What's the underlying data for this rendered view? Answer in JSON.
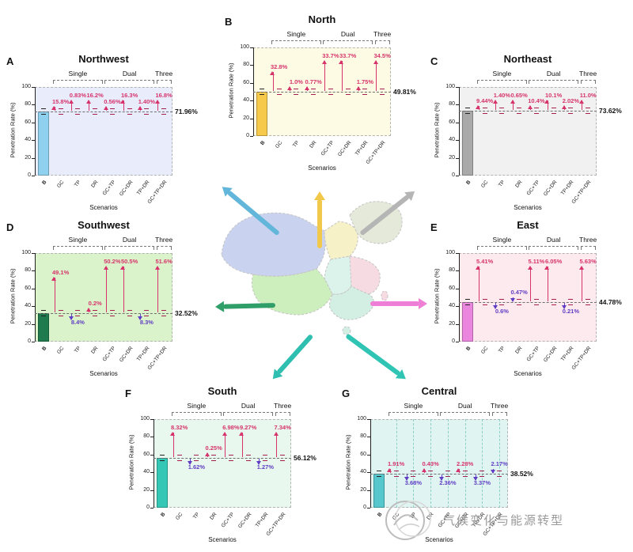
{
  "figure": {
    "scenarios": [
      "B",
      "GC",
      "TP",
      "DR",
      "GC+TP",
      "GC+DR",
      "TP+DR",
      "GC+TP+DR"
    ],
    "groups": [
      {
        "label": "Single",
        "from": 1,
        "to": 3
      },
      {
        "label": "Dual",
        "from": 4,
        "to": 6
      },
      {
        "label": "Three",
        "from": 7,
        "to": 7
      }
    ],
    "ylabel": "Penetration Rate (%)",
    "xlabel": "Scenarios",
    "yticks": [
      0,
      20,
      40,
      60,
      80,
      100
    ],
    "ylim": [
      0,
      100
    ],
    "colors": {
      "increase": "#d6336c",
      "decrease": "#5f3dc4",
      "baseline_line": "#6e6e6e",
      "marker": "#a61e4d"
    },
    "watermark": {
      "text": "气候变化与能源转型"
    }
  },
  "chart_data": [
    {
      "id": "A",
      "panel_letter": "A",
      "title": "Northwest",
      "type": "bar",
      "ylim": [
        0,
        100
      ],
      "baseline": 71.96,
      "baseline_label": "71.96%",
      "bar_color": "#8fd0ee",
      "bg_color": "#e9edfb",
      "map_color": "#c9d2ef",
      "arrow_color": "#62b6d9",
      "annotations": [
        {
          "scenario": "GC",
          "label": "15.8%",
          "direction": "increase",
          "level": "mid"
        },
        {
          "scenario": "TP",
          "label": "0.83%",
          "direction": "increase",
          "level": "high"
        },
        {
          "scenario": "DR",
          "label": "16.2%",
          "direction": "increase",
          "level": "high"
        },
        {
          "scenario": "GC+TP",
          "label": "0.56%",
          "direction": "increase",
          "level": "mid"
        },
        {
          "scenario": "GC+DR",
          "label": "16.3%",
          "direction": "increase",
          "level": "high"
        },
        {
          "scenario": "TP+DR",
          "label": "1.40%",
          "direction": "increase",
          "level": "mid"
        },
        {
          "scenario": "GC+TP+DR",
          "label": "16.8%",
          "direction": "increase",
          "level": "high"
        }
      ]
    },
    {
      "id": "B",
      "panel_letter": "B",
      "title": "North",
      "type": "bar",
      "ylim": [
        0,
        100
      ],
      "baseline": 49.81,
      "baseline_label": "49.81%",
      "bar_color": "#f6c94a",
      "bg_color": "#fdfbe3",
      "map_color": "#f6f1c6",
      "arrow_color": "#f2c84b",
      "annotations": [
        {
          "scenario": "GC",
          "label": "32.8%",
          "direction": "increase",
          "level": "high2"
        },
        {
          "scenario": "TP",
          "label": "1.0%",
          "direction": "increase",
          "level": "mid"
        },
        {
          "scenario": "DR",
          "label": "0.77%",
          "direction": "increase",
          "level": "mid"
        },
        {
          "scenario": "GC+TP",
          "label": "33.7%",
          "direction": "increase",
          "level": "high"
        },
        {
          "scenario": "GC+DR",
          "label": "33.7%",
          "direction": "increase",
          "level": "high"
        },
        {
          "scenario": "TP+DR",
          "label": "1.75%",
          "direction": "increase",
          "level": "mid"
        },
        {
          "scenario": "GC+TP+DR",
          "label": "34.5%",
          "direction": "increase",
          "level": "high"
        }
      ]
    },
    {
      "id": "C",
      "panel_letter": "C",
      "title": "Northeast",
      "type": "bar",
      "ylim": [
        0,
        100
      ],
      "baseline": 73.62,
      "baseline_label": "73.62%",
      "bar_color": "#a9a9a9",
      "bg_color": "#f1f1f1",
      "map_color": "#e4e9d9",
      "arrow_color": "#b5b5b5",
      "annotations": [
        {
          "scenario": "GC",
          "label": "9.44%",
          "direction": "increase",
          "level": "mid"
        },
        {
          "scenario": "TP",
          "label": "1.40%",
          "direction": "increase",
          "level": "high"
        },
        {
          "scenario": "DR",
          "label": "0.65%",
          "direction": "increase",
          "level": "high"
        },
        {
          "scenario": "GC+TP",
          "label": "10.4%",
          "direction": "increase",
          "level": "mid"
        },
        {
          "scenario": "GC+DR",
          "label": "10.1%",
          "direction": "increase",
          "level": "high"
        },
        {
          "scenario": "TP+DR",
          "label": "2.02%",
          "direction": "increase",
          "level": "mid"
        },
        {
          "scenario": "GC+TP+DR",
          "label": "11.0%",
          "direction": "increase",
          "level": "high"
        }
      ]
    },
    {
      "id": "D",
      "panel_letter": "D",
      "title": "Southwest",
      "type": "bar",
      "ylim": [
        0,
        100
      ],
      "baseline": 32.52,
      "baseline_label": "32.52%",
      "bar_color": "#1f7a4d",
      "bg_color": "#dbf3ca",
      "map_color": "#cdeebd",
      "arrow_color": "#2f9e68",
      "annotations": [
        {
          "scenario": "GC",
          "label": "49.1%",
          "direction": "increase",
          "level": "high2"
        },
        {
          "scenario": "TP",
          "label": "8.4%",
          "direction": "decrease",
          "level": "low"
        },
        {
          "scenario": "DR",
          "label": "0.2%",
          "direction": "increase",
          "level": "mid"
        },
        {
          "scenario": "GC+TP",
          "label": "50.2%",
          "direction": "increase",
          "level": "high"
        },
        {
          "scenario": "GC+DR",
          "label": "50.5%",
          "direction": "increase",
          "level": "high"
        },
        {
          "scenario": "TP+DR",
          "label": "8.3%",
          "direction": "decrease",
          "level": "low"
        },
        {
          "scenario": "GC+TP+DR",
          "label": "51.6%",
          "direction": "increase",
          "level": "high"
        }
      ]
    },
    {
      "id": "E",
      "panel_letter": "E",
      "title": "East",
      "type": "bar",
      "ylim": [
        0,
        100
      ],
      "baseline": 44.78,
      "baseline_label": "44.78%",
      "bar_color": "#ea86de",
      "bg_color": "#fdeaee",
      "map_color": "#f7dbe3",
      "arrow_color": "#ef7fd6",
      "annotations": [
        {
          "scenario": "GC",
          "label": "5.41%",
          "direction": "increase",
          "level": "high"
        },
        {
          "scenario": "TP",
          "label": "0.6%",
          "direction": "decrease",
          "level": "low"
        },
        {
          "scenario": "DR",
          "label": "0.47%",
          "direction": "decrease",
          "level": "mid"
        },
        {
          "scenario": "GC+TP",
          "label": "5.11%",
          "direction": "increase",
          "level": "high"
        },
        {
          "scenario": "GC+DR",
          "label": "6.05%",
          "direction": "increase",
          "level": "high"
        },
        {
          "scenario": "TP+DR",
          "label": "0.21%",
          "direction": "decrease",
          "level": "low"
        },
        {
          "scenario": "GC+TP+DR",
          "label": "5.63%",
          "direction": "increase",
          "level": "high"
        }
      ]
    },
    {
      "id": "F",
      "panel_letter": "F",
      "title": "South",
      "type": "bar",
      "ylim": [
        0,
        100
      ],
      "baseline": 56.12,
      "baseline_label": "56.12%",
      "bar_color": "#35c7b5",
      "bg_color": "#e9f8ee",
      "map_color": "#d3efe3",
      "arrow_color": "#2fbfb0",
      "annotations": [
        {
          "scenario": "GC",
          "label": "8.32%",
          "direction": "increase",
          "level": "high"
        },
        {
          "scenario": "TP",
          "label": "1.62%",
          "direction": "decrease",
          "level": "low"
        },
        {
          "scenario": "DR",
          "label": "0.25%",
          "direction": "increase",
          "level": "mid"
        },
        {
          "scenario": "GC+TP",
          "label": "6.98%",
          "direction": "increase",
          "level": "high"
        },
        {
          "scenario": "GC+DR",
          "label": "9.27%",
          "direction": "increase",
          "level": "high"
        },
        {
          "scenario": "TP+DR",
          "label": "1.27%",
          "direction": "decrease",
          "level": "low"
        },
        {
          "scenario": "GC+TP+DR",
          "label": "7.34%",
          "direction": "increase",
          "level": "high"
        }
      ]
    },
    {
      "id": "G",
      "panel_letter": "G",
      "title": "Central",
      "type": "bar",
      "ylim": [
        0,
        100
      ],
      "baseline": 38.52,
      "baseline_label": "38.52%",
      "bar_color": "#55c7cd",
      "bg_color": "#e0f5f2",
      "map_color": "#dcf3ec",
      "arrow_color": "#2fc4b4",
      "vlines": true,
      "annotations": [
        {
          "scenario": "GC",
          "label": "1.91%",
          "direction": "increase",
          "level": "mid"
        },
        {
          "scenario": "TP",
          "label": "3.68%",
          "direction": "decrease",
          "level": "low"
        },
        {
          "scenario": "DR",
          "label": "0.43%",
          "direction": "increase",
          "level": "mid"
        },
        {
          "scenario": "GC+TP",
          "label": "2.36%",
          "direction": "decrease",
          "level": "low"
        },
        {
          "scenario": "GC+DR",
          "label": "2.28%",
          "direction": "increase",
          "level": "mid"
        },
        {
          "scenario": "TP+DR",
          "label": "3.37%",
          "direction": "decrease",
          "level": "low"
        },
        {
          "scenario": "GC+TP+DR",
          "label": "2.17%",
          "direction": "decrease",
          "level": "mid"
        }
      ]
    }
  ]
}
